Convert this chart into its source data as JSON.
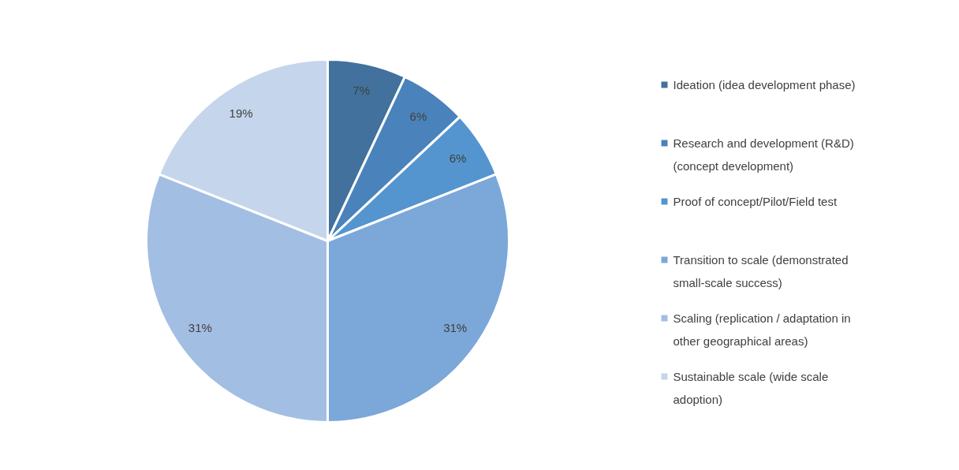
{
  "chart_data": {
    "type": "pie",
    "categories": [
      "Ideation (idea development phase)",
      "Research and development (R&D) (concept development)",
      "Proof of concept/Pilot/Field test",
      "Transition to scale (demonstrated small-scale success)",
      "Scaling (replication / adaptation in other geographical areas)",
      "Sustainable scale (wide scale adoption)"
    ],
    "values": [
      7,
      6,
      6,
      31,
      31,
      19
    ],
    "value_labels": [
      "7%",
      "6%",
      "6%",
      "31%",
      "31%",
      "19%"
    ],
    "colors": [
      "#41719c",
      "#4a82bb",
      "#5595cf",
      "#7ba7d9",
      "#a3bee3",
      "#c5d5eb"
    ],
    "legend": "right"
  }
}
